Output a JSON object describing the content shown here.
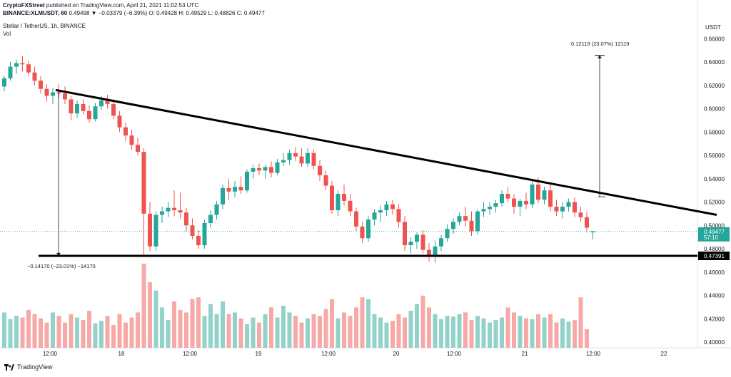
{
  "header": {
    "line1_author": "CryptoFXStreet",
    "line1_rest": "published on TradingView.com, April 21, 2021 11:02:53 UTC",
    "line2_symbol": "BINANCE:XLMUSDT, 60",
    "line2_rest": "0.49498  ▼ −0.03379 (−6.39%) O: 0.49428 H: 0.49529 L: 0.48826 C: 0.49477"
  },
  "pair_label": "Stellar / TetherUS, 1h, BINANCE",
  "vol_label": "Vol",
  "brand": "TradingView",
  "currency_label": "USDT",
  "colors": {
    "up": "#26a69a",
    "down": "#ef5350",
    "up_vol": "#93d2c9",
    "down_vol": "#f6a9a7",
    "trendline": "#000000"
  },
  "price_axis": [
    "0.66000",
    "0.64000",
    "0.62000",
    "0.60000",
    "0.58000",
    "0.56000",
    "0.54000",
    "0.52000",
    "0.50000",
    "0.48000",
    "0.46000",
    "0.44000",
    "0.42000",
    "0.40000"
  ],
  "last_price_label": "0.49477",
  "countdown_label": "57:10",
  "support_label": "0.47391",
  "annotations": {
    "measure_up": "0.12119 (23.07%) 12119",
    "measure_down": "−0.14170 (−23.01%) −14170"
  },
  "chart_data": {
    "type": "candlestick",
    "title": "Stellar / TetherUS, 1h, BINANCE",
    "x_ticks": [
      "12:00",
      "18",
      "12:00",
      "19",
      "12:00",
      "20",
      "12:00",
      "21",
      "12:00",
      "22"
    ],
    "ylim": [
      0.4,
      0.665
    ],
    "support": 0.47391,
    "trendline": {
      "from": 0.616,
      "to": 0.509
    },
    "measure_up": {
      "from": 0.5245,
      "to": 0.6457
    },
    "measure_down": {
      "from": 0.6157,
      "to": 0.474
    },
    "candles": [
      [
        0.619,
        0.628,
        0.615,
        0.626
      ],
      [
        0.626,
        0.64,
        0.624,
        0.636
      ],
      [
        0.636,
        0.642,
        0.63,
        0.639
      ],
      [
        0.639,
        0.645,
        0.632,
        0.638
      ],
      [
        0.638,
        0.641,
        0.628,
        0.631
      ],
      [
        0.631,
        0.636,
        0.62,
        0.624
      ],
      [
        0.624,
        0.628,
        0.613,
        0.617
      ],
      [
        0.617,
        0.621,
        0.606,
        0.611
      ],
      [
        0.611,
        0.618,
        0.604,
        0.614
      ],
      [
        0.614,
        0.621,
        0.609,
        0.613
      ],
      [
        0.613,
        0.619,
        0.604,
        0.608
      ],
      [
        0.608,
        0.611,
        0.59,
        0.596
      ],
      [
        0.596,
        0.607,
        0.592,
        0.604
      ],
      [
        0.604,
        0.608,
        0.595,
        0.598
      ],
      [
        0.598,
        0.603,
        0.588,
        0.591
      ],
      [
        0.591,
        0.605,
        0.589,
        0.602
      ],
      [
        0.602,
        0.611,
        0.599,
        0.607
      ],
      [
        0.607,
        0.612,
        0.6,
        0.604
      ],
      [
        0.604,
        0.608,
        0.591,
        0.594
      ],
      [
        0.594,
        0.598,
        0.58,
        0.584
      ],
      [
        0.584,
        0.588,
        0.572,
        0.577
      ],
      [
        0.577,
        0.582,
        0.565,
        0.569
      ],
      [
        0.569,
        0.575,
        0.56,
        0.563
      ],
      [
        0.563,
        0.566,
        0.474,
        0.51
      ],
      [
        0.51,
        0.52,
        0.478,
        0.482
      ],
      [
        0.482,
        0.512,
        0.478,
        0.509
      ],
      [
        0.509,
        0.516,
        0.502,
        0.512
      ],
      [
        0.512,
        0.52,
        0.507,
        0.515
      ],
      [
        0.515,
        0.53,
        0.508,
        0.513
      ],
      [
        0.513,
        0.528,
        0.506,
        0.511
      ],
      [
        0.511,
        0.515,
        0.495,
        0.5
      ],
      [
        0.5,
        0.506,
        0.488,
        0.491
      ],
      [
        0.491,
        0.496,
        0.48,
        0.483
      ],
      [
        0.483,
        0.505,
        0.48,
        0.502
      ],
      [
        0.502,
        0.513,
        0.498,
        0.509
      ],
      [
        0.509,
        0.521,
        0.505,
        0.518
      ],
      [
        0.518,
        0.535,
        0.514,
        0.532
      ],
      [
        0.532,
        0.54,
        0.522,
        0.529
      ],
      [
        0.529,
        0.538,
        0.524,
        0.533
      ],
      [
        0.533,
        0.542,
        0.527,
        0.53
      ],
      [
        0.53,
        0.548,
        0.528,
        0.546
      ],
      [
        0.546,
        0.552,
        0.54,
        0.549
      ],
      [
        0.549,
        0.553,
        0.543,
        0.547
      ],
      [
        0.547,
        0.552,
        0.54,
        0.55
      ],
      [
        0.55,
        0.555,
        0.541,
        0.545
      ],
      [
        0.545,
        0.557,
        0.543,
        0.554
      ],
      [
        0.554,
        0.562,
        0.551,
        0.556
      ],
      [
        0.556,
        0.565,
        0.552,
        0.562
      ],
      [
        0.562,
        0.567,
        0.555,
        0.559
      ],
      [
        0.559,
        0.566,
        0.55,
        0.553
      ],
      [
        0.553,
        0.566,
        0.55,
        0.562
      ],
      [
        0.562,
        0.565,
        0.548,
        0.551
      ],
      [
        0.551,
        0.556,
        0.538,
        0.543
      ],
      [
        0.543,
        0.547,
        0.53,
        0.534
      ],
      [
        0.534,
        0.538,
        0.51,
        0.513
      ],
      [
        0.513,
        0.53,
        0.508,
        0.527
      ],
      [
        0.527,
        0.535,
        0.517,
        0.521
      ],
      [
        0.521,
        0.527,
        0.508,
        0.512
      ],
      [
        0.512,
        0.515,
        0.495,
        0.499
      ],
      [
        0.499,
        0.503,
        0.485,
        0.489
      ],
      [
        0.489,
        0.508,
        0.486,
        0.505
      ],
      [
        0.505,
        0.514,
        0.5,
        0.511
      ],
      [
        0.511,
        0.517,
        0.503,
        0.513
      ],
      [
        0.513,
        0.521,
        0.508,
        0.518
      ],
      [
        0.518,
        0.522,
        0.509,
        0.514
      ],
      [
        0.514,
        0.518,
        0.498,
        0.503
      ],
      [
        0.503,
        0.508,
        0.478,
        0.483
      ],
      [
        0.483,
        0.49,
        0.476,
        0.486
      ],
      [
        0.486,
        0.494,
        0.48,
        0.492
      ],
      [
        0.492,
        0.496,
        0.476,
        0.479
      ],
      [
        0.479,
        0.485,
        0.469,
        0.474
      ],
      [
        0.474,
        0.487,
        0.468,
        0.482
      ],
      [
        0.482,
        0.492,
        0.478,
        0.489
      ],
      [
        0.489,
        0.501,
        0.486,
        0.497
      ],
      [
        0.497,
        0.506,
        0.493,
        0.503
      ],
      [
        0.503,
        0.511,
        0.5,
        0.508
      ],
      [
        0.508,
        0.516,
        0.499,
        0.504
      ],
      [
        0.504,
        0.512,
        0.491,
        0.495
      ],
      [
        0.495,
        0.514,
        0.492,
        0.512
      ],
      [
        0.512,
        0.52,
        0.507,
        0.514
      ],
      [
        0.514,
        0.52,
        0.509,
        0.516
      ],
      [
        0.516,
        0.522,
        0.511,
        0.519
      ],
      [
        0.519,
        0.53,
        0.516,
        0.527
      ],
      [
        0.527,
        0.533,
        0.52,
        0.523
      ],
      [
        0.523,
        0.527,
        0.51,
        0.516
      ],
      [
        0.516,
        0.523,
        0.508,
        0.521
      ],
      [
        0.521,
        0.528,
        0.514,
        0.518
      ],
      [
        0.518,
        0.538,
        0.515,
        0.535
      ],
      [
        0.535,
        0.541,
        0.519,
        0.522
      ],
      [
        0.522,
        0.533,
        0.518,
        0.53
      ],
      [
        0.53,
        0.535,
        0.512,
        0.516
      ],
      [
        0.516,
        0.522,
        0.508,
        0.512
      ],
      [
        0.512,
        0.52,
        0.506,
        0.516
      ],
      [
        0.516,
        0.523,
        0.512,
        0.52
      ],
      [
        0.52,
        0.524,
        0.507,
        0.511
      ],
      [
        0.511,
        0.516,
        0.503,
        0.507
      ],
      [
        0.507,
        0.512,
        0.494,
        0.498
      ],
      [
        0.494,
        0.495,
        0.488,
        0.495
      ]
    ],
    "volume": [
      0.42,
      0.34,
      0.38,
      0.36,
      0.45,
      0.4,
      0.35,
      0.3,
      0.42,
      0.38,
      0.3,
      0.4,
      0.36,
      0.33,
      0.44,
      0.29,
      0.32,
      0.38,
      0.27,
      0.4,
      0.3,
      0.36,
      0.42,
      1.0,
      0.78,
      0.68,
      0.48,
      0.33,
      0.55,
      0.45,
      0.42,
      0.58,
      0.6,
      0.38,
      0.52,
      0.4,
      0.55,
      0.4,
      0.42,
      0.35,
      0.28,
      0.36,
      0.3,
      0.4,
      0.48,
      0.36,
      0.5,
      0.42,
      0.38,
      0.3,
      0.35,
      0.4,
      0.38,
      0.46,
      0.58,
      0.35,
      0.42,
      0.38,
      0.48,
      0.6,
      0.58,
      0.4,
      0.36,
      0.3,
      0.32,
      0.4,
      0.36,
      0.44,
      0.52,
      0.62,
      0.48,
      0.4,
      0.34,
      0.38,
      0.37,
      0.4,
      0.42,
      0.33,
      0.38,
      0.35,
      0.3,
      0.33,
      0.36,
      0.48,
      0.42,
      0.38,
      0.35,
      0.34,
      0.4,
      0.36,
      0.4,
      0.3,
      0.35,
      0.31,
      0.33,
      0.6,
      0.22
    ]
  }
}
